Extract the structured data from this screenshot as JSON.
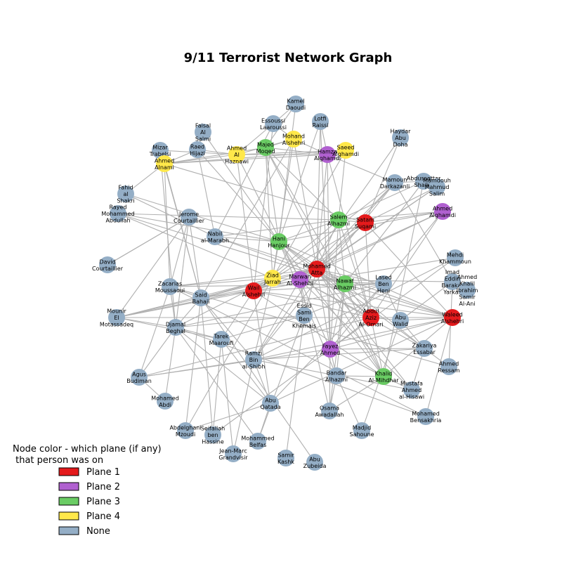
{
  "title": "9/11 Terrorist Network Graph",
  "legend": {
    "title_line1": "Node color - which plane (if any)",
    "title_line2": " that person was on",
    "items": [
      {
        "label": "Plane 1",
        "color": "#e41a1c"
      },
      {
        "label": "Plane 2",
        "color": "#b060d0"
      },
      {
        "label": "Plane 3",
        "color": "#6acc64"
      },
      {
        "label": "Plane 4",
        "color": "#ffe84a"
      },
      {
        "label": "None",
        "color": "#94aec6"
      }
    ]
  },
  "nodes": [
    {
      "id": "kamel",
      "label": "Kamel\nDaoudi",
      "group": "None"
    },
    {
      "id": "lotfi",
      "label": "Lotfi\nRaissi",
      "group": "None"
    },
    {
      "id": "essoussi",
      "label": "Essoussi\nLaaroussi",
      "group": "None"
    },
    {
      "id": "mohand",
      "label": "Mohand\nAlshehri",
      "group": "Plane 4"
    },
    {
      "id": "faisal",
      "label": "Faisal\nAl\nSalmi",
      "group": "None"
    },
    {
      "id": "haydar",
      "label": "Haydar\nAbu\nDoha",
      "group": "None"
    },
    {
      "id": "majed",
      "label": "Majed\nMoqed",
      "group": "Plane 3"
    },
    {
      "id": "hamza",
      "label": "Hamza\nAlghamdi",
      "group": "Plane 2"
    },
    {
      "id": "saeed",
      "label": "Saeed\nAlghamdi",
      "group": "Plane 4"
    },
    {
      "id": "ahmed_haznawi",
      "label": "Ahmed\nAl\nHaznawi",
      "group": "Plane 4"
    },
    {
      "id": "mizar",
      "label": "Mizar\nTrabelsi",
      "group": "None"
    },
    {
      "id": "raed",
      "label": "Raed\nHijazi",
      "group": "None"
    },
    {
      "id": "ahmed_alnami",
      "label": "Ahmed\nAlnami",
      "group": "Plane 4"
    },
    {
      "id": "mamoun",
      "label": "Mamoun\nDarkazanli",
      "group": "None"
    },
    {
      "id": "abdussattar",
      "label": "Abdussattar\nShaikh",
      "group": "None"
    },
    {
      "id": "mamdouh",
      "label": "Mamdouh\nMahmud\nSalim",
      "group": "None"
    },
    {
      "id": "fahid",
      "label": "Fahid\nal\nShakri",
      "group": "None"
    },
    {
      "id": "rayed",
      "label": "Rayed\nMohammed\nAbdullah",
      "group": "None"
    },
    {
      "id": "jerome",
      "label": "Jerome\nCourtaillier",
      "group": "None"
    },
    {
      "id": "ahmed_alghamdi",
      "label": "Ahmed\nAlghamdi",
      "group": "Plane 2"
    },
    {
      "id": "salem",
      "label": "Salem\nAlhazmi",
      "group": "Plane 3"
    },
    {
      "id": "satam",
      "label": "Satam\nSuqami",
      "group": "Plane 1"
    },
    {
      "id": "nabil",
      "label": "Nabil\nal-Marabh",
      "group": "None"
    },
    {
      "id": "hani",
      "label": "Hani\nHanjour",
      "group": "Plane 3"
    },
    {
      "id": "mehdi",
      "label": "Mehdi\nKhammoun",
      "group": "None"
    },
    {
      "id": "david",
      "label": "David\nCourtaillier",
      "group": "None"
    },
    {
      "id": "mohamed_atta",
      "label": "Mohamed\nAtta",
      "group": "Plane 1"
    },
    {
      "id": "ziad",
      "label": "Ziad\nJarrah",
      "group": "Plane 4"
    },
    {
      "id": "marwan",
      "label": "Marwan\nAl-Shehhi",
      "group": "Plane 2"
    },
    {
      "id": "imad",
      "label": "Imad\nEddin\nBarakat\nYarkas",
      "group": "None"
    },
    {
      "id": "ahmed_khalil",
      "label": "Ahmed\nKhalil\nIbrahim\nSamir\nAl-Ani",
      "group": "None"
    },
    {
      "id": "lased",
      "label": "Lased\nBen\nHeni",
      "group": "None"
    },
    {
      "id": "nawaf",
      "label": "Nawaf\nAlhazmi",
      "group": "Plane 3"
    },
    {
      "id": "zacarias",
      "label": "Zacarias\nMoussaoui",
      "group": "None"
    },
    {
      "id": "wail",
      "label": "Wail\nAlshehri",
      "group": "Plane 1"
    },
    {
      "id": "said",
      "label": "Said\nBahaji",
      "group": "None"
    },
    {
      "id": "essid",
      "label": "Essid\nSami\nBen\nKhemais",
      "group": "None"
    },
    {
      "id": "abdul_aziz",
      "label": "Abdul\nAziz\nAl-Omari",
      "group": "Plane 1"
    },
    {
      "id": "abu_walid",
      "label": "Abu\nWalid",
      "group": "None"
    },
    {
      "id": "waleed",
      "label": "Waleed\nAlshehri",
      "group": "Plane 1"
    },
    {
      "id": "mounir",
      "label": "Mounir\nEl\nMotassadeq",
      "group": "None"
    },
    {
      "id": "djamal",
      "label": "Djamal\nBeghal",
      "group": "None"
    },
    {
      "id": "tarek",
      "label": "Tarek\nMaaroufi",
      "group": "None"
    },
    {
      "id": "fayez",
      "label": "Fayez\nAhmed",
      "group": "Plane 2"
    },
    {
      "id": "zakariya",
      "label": "Zakariya\nEssabar",
      "group": "None"
    },
    {
      "id": "ramzi",
      "label": "Ramzi\nBin\nal-Shibh",
      "group": "None"
    },
    {
      "id": "ahmed_ressam",
      "label": "Ahmed\nRessam",
      "group": "None"
    },
    {
      "id": "agus",
      "label": "Agus\nBudiman",
      "group": "None"
    },
    {
      "id": "bandar",
      "label": "Bandar\nAlhazmi",
      "group": "None"
    },
    {
      "id": "khalid",
      "label": "Khalid\nAl-Mihdhar",
      "group": "Plane 3"
    },
    {
      "id": "mustafa",
      "label": "Mustafa\nAhmed\nal-Hisawi",
      "group": "None"
    },
    {
      "id": "mohamed_abdi",
      "label": "Mohamed\nAbdi",
      "group": "None"
    },
    {
      "id": "abu_qatada",
      "label": "Abu\nQatada",
      "group": "None"
    },
    {
      "id": "osama",
      "label": "Osama\nAwadallah",
      "group": "None"
    },
    {
      "id": "abdelghani",
      "label": "Abdelghani\nMzoudi",
      "group": "None"
    },
    {
      "id": "seifallah",
      "label": "Seifallah\nben\nHassine",
      "group": "None"
    },
    {
      "id": "madjid",
      "label": "Madjid\nSahoune",
      "group": "None"
    },
    {
      "id": "mohamed_bensakhria",
      "label": "Mohamed\nBensakhria",
      "group": "None"
    },
    {
      "id": "mohammed_belfas",
      "label": "Mohammed\nBelfas",
      "group": "None"
    },
    {
      "id": "jean_marc",
      "label": "Jean-Marc\nGrandvisir",
      "group": "None"
    },
    {
      "id": "samir_kishk",
      "label": "Samir\nKashk",
      "group": "None"
    },
    {
      "id": "abu_zubeida",
      "label": "Abu\nZubeida",
      "group": "None"
    }
  ],
  "edges": [
    [
      "kamel",
      "essoussi"
    ],
    [
      "kamel",
      "majed"
    ],
    [
      "kamel",
      "hani"
    ],
    [
      "lotfi",
      "hamza"
    ],
    [
      "lotfi",
      "hani"
    ],
    [
      "lotfi",
      "mohamed_atta"
    ],
    [
      "lotfi",
      "fayez"
    ],
    [
      "essoussi",
      "ahmed_haznawi"
    ],
    [
      "essoussi",
      "mohand"
    ],
    [
      "essoussi",
      "nabil"
    ],
    [
      "essoussi",
      "wail"
    ],
    [
      "mohand",
      "hamza"
    ],
    [
      "mohand",
      "majed"
    ],
    [
      "mohand",
      "ahmed_haznawi"
    ],
    [
      "mohand",
      "mohamed_atta"
    ],
    [
      "mohand",
      "ziad"
    ],
    [
      "mohand",
      "said"
    ],
    [
      "faisal",
      "hani"
    ],
    [
      "faisal",
      "raed"
    ],
    [
      "haydar",
      "satam"
    ],
    [
      "haydar",
      "marwan"
    ],
    [
      "majed",
      "hani"
    ],
    [
      "majed",
      "hamza"
    ],
    [
      "majed",
      "salem"
    ],
    [
      "majed",
      "nawaf"
    ],
    [
      "majed",
      "ziad"
    ],
    [
      "majed",
      "khalid"
    ],
    [
      "majed",
      "ahmed_alnami"
    ],
    [
      "hamza",
      "saeed"
    ],
    [
      "hamza",
      "ahmed_haznawi"
    ],
    [
      "hamza",
      "mamoun"
    ],
    [
      "hamza",
      "mohamed_atta"
    ],
    [
      "hamza",
      "abdul_aziz"
    ],
    [
      "hamza",
      "fayez"
    ],
    [
      "hamza",
      "ahmed_alnami"
    ],
    [
      "saeed",
      "ahmed_haznawi"
    ],
    [
      "saeed",
      "ahmed_alnami"
    ],
    [
      "saeed",
      "salem"
    ],
    [
      "saeed",
      "ziad"
    ],
    [
      "ahmed_haznawi",
      "mizar"
    ],
    [
      "ahmed_haznawi",
      "ahmed_alnami"
    ],
    [
      "ahmed_haznawi",
      "wail"
    ],
    [
      "ahmed_haznawi",
      "raed"
    ],
    [
      "ahmed_haznawi",
      "marwan"
    ],
    [
      "mizar",
      "ahmed_alnami"
    ],
    [
      "mizar",
      "djamal"
    ],
    [
      "mizar",
      "said"
    ],
    [
      "raed",
      "ahmed_alnami"
    ],
    [
      "raed",
      "nabil"
    ],
    [
      "raed",
      "hani"
    ],
    [
      "ahmed_alnami",
      "fahid"
    ],
    [
      "ahmed_alnami",
      "satam"
    ],
    [
      "ahmed_alnami",
      "said"
    ],
    [
      "ahmed_alnami",
      "zacarias"
    ],
    [
      "mamoun",
      "abdussattar"
    ],
    [
      "mamoun",
      "mohamed_atta"
    ],
    [
      "mamoun",
      "marwan"
    ],
    [
      "mamoun",
      "ziad"
    ],
    [
      "mamoun",
      "imad"
    ],
    [
      "mamoun",
      "ramzi"
    ],
    [
      "abdussattar",
      "mamdouh"
    ],
    [
      "abdussattar",
      "salem"
    ],
    [
      "abdussattar",
      "nawaf"
    ],
    [
      "abdussattar",
      "khalid"
    ],
    [
      "mamdouh",
      "satam"
    ],
    [
      "mamdouh",
      "marwan"
    ],
    [
      "mamdouh",
      "mohamed_atta"
    ],
    [
      "fahid",
      "hani"
    ],
    [
      "fahid",
      "nabil"
    ],
    [
      "rayed",
      "hani"
    ],
    [
      "rayed",
      "salem"
    ],
    [
      "rayed",
      "nawaf"
    ],
    [
      "rayed",
      "ziad"
    ],
    [
      "jerome",
      "david"
    ],
    [
      "jerome",
      "djamal"
    ],
    [
      "jerome",
      "zacarias"
    ],
    [
      "jerome",
      "said"
    ],
    [
      "jerome",
      "mounir"
    ],
    [
      "ahmed_alghamdi",
      "salem"
    ],
    [
      "ahmed_alghamdi",
      "satam"
    ],
    [
      "ahmed_alghamdi",
      "hani"
    ],
    [
      "ahmed_alghamdi",
      "marwan"
    ],
    [
      "ahmed_alghamdi",
      "abdul_aziz"
    ],
    [
      "ahmed_alghamdi",
      "fayez"
    ],
    [
      "ahmed_alghamdi",
      "mohamed_atta"
    ],
    [
      "salem",
      "satam"
    ],
    [
      "salem",
      "hani"
    ],
    [
      "salem",
      "nabil"
    ],
    [
      "salem",
      "mohamed_atta"
    ],
    [
      "salem",
      "wail"
    ],
    [
      "salem",
      "nawaf"
    ],
    [
      "salem",
      "abdul_aziz"
    ],
    [
      "salem",
      "fayez"
    ],
    [
      "satam",
      "mohamed_atta"
    ],
    [
      "satam",
      "abdul_aziz"
    ],
    [
      "satam",
      "waleed"
    ],
    [
      "satam",
      "marwan"
    ],
    [
      "satam",
      "wail"
    ],
    [
      "nabil",
      "hani"
    ],
    [
      "nabil",
      "mohamed_atta"
    ],
    [
      "nabil",
      "nawaf"
    ],
    [
      "hani",
      "mohamed_atta"
    ],
    [
      "hani",
      "marwan"
    ],
    [
      "hani",
      "nawaf"
    ],
    [
      "hani",
      "khalid"
    ],
    [
      "hani",
      "bandar"
    ],
    [
      "hani",
      "abdul_aziz"
    ],
    [
      "hani",
      "waleed"
    ],
    [
      "hani",
      "ziad"
    ],
    [
      "mehdi",
      "wail"
    ],
    [
      "mehdi",
      "ramzi"
    ],
    [
      "mehdi",
      "fayez"
    ],
    [
      "david",
      "jerome"
    ],
    [
      "mohamed_atta",
      "marwan"
    ],
    [
      "mohamed_atta",
      "ziad"
    ],
    [
      "mohamed_atta",
      "wail"
    ],
    [
      "mohamed_atta",
      "waleed"
    ],
    [
      "mohamed_atta",
      "abdul_aziz"
    ],
    [
      "mohamed_atta",
      "nawaf"
    ],
    [
      "mohamed_atta",
      "fayez"
    ],
    [
      "mohamed_atta",
      "khalid"
    ],
    [
      "mohamed_atta",
      "said"
    ],
    [
      "mohamed_atta",
      "ramzi"
    ],
    [
      "mohamed_atta",
      "zakariya"
    ],
    [
      "mohamed_atta",
      "mustafa"
    ],
    [
      "mohamed_atta",
      "lased"
    ],
    [
      "mohamed_atta",
      "essid"
    ],
    [
      "mohamed_atta",
      "zacarias"
    ],
    [
      "ziad",
      "marwan"
    ],
    [
      "ziad",
      "said"
    ],
    [
      "ziad",
      "zacarias"
    ],
    [
      "ziad",
      "ramzi"
    ],
    [
      "ziad",
      "wail"
    ],
    [
      "ziad",
      "mounir"
    ],
    [
      "ziad",
      "abdelghani"
    ],
    [
      "ziad",
      "djamal"
    ],
    [
      "marwan",
      "fayez"
    ],
    [
      "marwan",
      "said"
    ],
    [
      "marwan",
      "ramzi"
    ],
    [
      "marwan",
      "waleed"
    ],
    [
      "marwan",
      "abdul_aziz"
    ],
    [
      "marwan",
      "zakariya"
    ],
    [
      "marwan",
      "mounir"
    ],
    [
      "marwan",
      "lased"
    ],
    [
      "marwan",
      "imad"
    ],
    [
      "marwan",
      "mustafa"
    ],
    [
      "marwan",
      "essid"
    ],
    [
      "marwan",
      "osama"
    ],
    [
      "imad",
      "ahmed_khalil"
    ],
    [
      "imad",
      "abu_walid"
    ],
    [
      "imad",
      "ahmed_ressam"
    ],
    [
      "lased",
      "essid"
    ],
    [
      "lased",
      "abu_walid"
    ],
    [
      "lased",
      "zacarias"
    ],
    [
      "lased",
      "wail"
    ],
    [
      "lased",
      "djamal"
    ],
    [
      "lased",
      "abu_qatada"
    ],
    [
      "nawaf",
      "khalid"
    ],
    [
      "nawaf",
      "abdul_aziz"
    ],
    [
      "nawaf",
      "bandar"
    ],
    [
      "nawaf",
      "waleed"
    ],
    [
      "nawaf",
      "osama"
    ],
    [
      "nawaf",
      "zakariya"
    ],
    [
      "nawaf",
      "fayez"
    ],
    [
      "zacarias",
      "said"
    ],
    [
      "zacarias",
      "djamal"
    ],
    [
      "zacarias",
      "agus"
    ],
    [
      "zacarias",
      "mohamed_bensakhria"
    ],
    [
      "zacarias",
      "ahmed_ressam"
    ],
    [
      "wail",
      "waleed"
    ],
    [
      "wail",
      "abdul_aziz"
    ],
    [
      "wail",
      "said"
    ],
    [
      "wail",
      "mounir"
    ],
    [
      "wail",
      "tarek"
    ],
    [
      "wail",
      "abu_qatada"
    ],
    [
      "wail",
      "khalid"
    ],
    [
      "said",
      "mounir"
    ],
    [
      "said",
      "djamal"
    ],
    [
      "said",
      "ramzi"
    ],
    [
      "said",
      "abdelghani"
    ],
    [
      "said",
      "seifallah"
    ],
    [
      "said",
      "abu_zubeida"
    ],
    [
      "essid",
      "djamal"
    ],
    [
      "essid",
      "tarek"
    ],
    [
      "essid",
      "samir_kishk"
    ],
    [
      "essid",
      "mohammed_belfas"
    ],
    [
      "abdul_aziz",
      "waleed"
    ],
    [
      "abdul_aziz",
      "fayez"
    ],
    [
      "abdul_aziz",
      "abu_walid"
    ],
    [
      "abdul_aziz",
      "khalid"
    ],
    [
      "abdul_aziz",
      "mounir"
    ],
    [
      "abdul_aziz",
      "agus"
    ],
    [
      "abu_walid",
      "waleed"
    ],
    [
      "abu_walid",
      "zakariya"
    ],
    [
      "abu_walid",
      "madjid"
    ],
    [
      "waleed",
      "fayez"
    ],
    [
      "waleed",
      "khalid"
    ],
    [
      "waleed",
      "ramzi"
    ],
    [
      "waleed",
      "abu_qatada"
    ],
    [
      "waleed",
      "mohamed_bensakhria"
    ],
    [
      "mounir",
      "djamal"
    ],
    [
      "mounir",
      "tarek"
    ],
    [
      "djamal",
      "tarek"
    ],
    [
      "djamal",
      "agus"
    ],
    [
      "djamal",
      "mohamed_abdi"
    ],
    [
      "djamal",
      "abu_qatada"
    ],
    [
      "djamal",
      "mohammed_belfas"
    ],
    [
      "djamal",
      "mohamed_bensakhria"
    ],
    [
      "tarek",
      "seifallah"
    ],
    [
      "tarek",
      "jean_marc"
    ],
    [
      "tarek",
      "abu_qatada"
    ],
    [
      "fayez",
      "bandar"
    ],
    [
      "fayez",
      "khalid"
    ],
    [
      "fayez",
      "zakariya"
    ],
    [
      "fayez",
      "agus"
    ],
    [
      "fayez",
      "osama"
    ],
    [
      "fayez",
      "seifallah"
    ],
    [
      "zakariya",
      "ramzi"
    ],
    [
      "zakariya",
      "mustafa"
    ],
    [
      "zakariya",
      "ahmed_ressam"
    ],
    [
      "ramzi",
      "agus"
    ],
    [
      "ramzi",
      "abu_qatada"
    ],
    [
      "ramzi",
      "mustafa"
    ],
    [
      "ramzi",
      "jean_marc"
    ],
    [
      "bandar",
      "khalid"
    ],
    [
      "bandar",
      "osama"
    ],
    [
      "bandar",
      "madjid"
    ],
    [
      "khalid",
      "mustafa"
    ],
    [
      "khalid",
      "osama"
    ],
    [
      "abu_qatada",
      "abdelghani"
    ],
    [
      "abu_qatada",
      "mohammed_belfas"
    ],
    [
      "mohamed_abdi",
      "agus"
    ]
  ]
}
